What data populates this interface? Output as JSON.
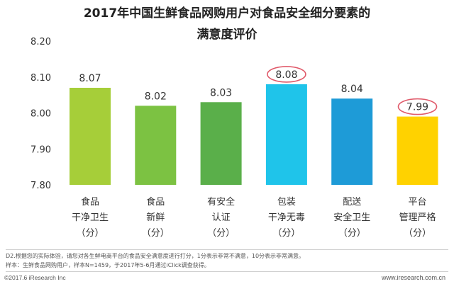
{
  "chart_data": {
    "type": "bar",
    "title_lines": [
      "2017年中国生鲜食品网购用户对食品安全细分要素的",
      "满意度评价"
    ],
    "categories": [
      [
        "食品",
        "干净卫生",
        "（分）"
      ],
      [
        "食品",
        "新鲜",
        "（分）"
      ],
      [
        "有安全",
        "认证",
        "（分）"
      ],
      [
        "包装",
        "干净无毒",
        "（分）"
      ],
      [
        "配送",
        "安全卫生",
        "（分）"
      ],
      [
        "平台",
        "管理严格",
        "（分）"
      ]
    ],
    "values": [
      8.07,
      8.02,
      8.03,
      8.08,
      8.04,
      7.99
    ],
    "value_labels": [
      "8.07",
      "8.02",
      "8.03",
      "8.08",
      "8.04",
      "7.99"
    ],
    "colors": [
      "#a6ce39",
      "#7cc242",
      "#5aaf4a",
      "#1fc4ea",
      "#1e9bd7",
      "#ffd200"
    ],
    "highlighted": [
      3,
      5
    ],
    "highlight_color": "#e05a6a",
    "ylim": [
      7.8,
      8.2
    ],
    "yticks": [
      7.8,
      7.9,
      8.0,
      8.1,
      8.2
    ],
    "ytick_labels": [
      "7.80",
      "7.90",
      "8.00",
      "8.10",
      "8.20"
    ],
    "grid": false
  },
  "footnotes": {
    "note": "D2.根据您的实际体验，请您对各生鲜电商平台的食品安全满意度进行打分，1分表示非常不满意，10分表示非常满意。",
    "sample": "样本：生鲜食品网购用户，样本N=1459，于2017年5-6月通过iClick调查获得。"
  },
  "brand": {
    "copyright": "©2017.6 iResearch Inc",
    "site": "www.iresearch.com.cn"
  }
}
